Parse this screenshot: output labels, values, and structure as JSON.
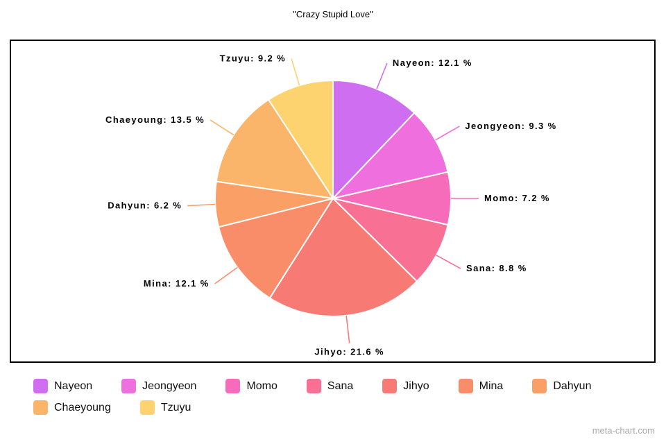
{
  "watermark": "meta-chart.com",
  "chart_data": {
    "type": "pie",
    "title": "\"Crazy Stupid Love\"",
    "start_angle_deg": -90,
    "direction": "clockwise",
    "legend_position": "bottom",
    "label_format": "{name}: {value} %",
    "series": [
      {
        "name": "Nayeon",
        "value": 12.1,
        "color": "#d06ef2"
      },
      {
        "name": "Jeongyeon",
        "value": 9.3,
        "color": "#ee6fdd"
      },
      {
        "name": "Momo",
        "value": 7.2,
        "color": "#f76bbb"
      },
      {
        "name": "Sana",
        "value": 8.8,
        "color": "#f97095"
      },
      {
        "name": "Jihyo",
        "value": 21.6,
        "color": "#f87a74"
      },
      {
        "name": "Mina",
        "value": 12.1,
        "color": "#f98d69"
      },
      {
        "name": "Dahyun",
        "value": 6.2,
        "color": "#faa067"
      },
      {
        "name": "Chaeyoung",
        "value": 13.5,
        "color": "#fbb56b"
      },
      {
        "name": "Tzuyu",
        "value": 9.2,
        "color": "#fcd36e"
      }
    ]
  }
}
